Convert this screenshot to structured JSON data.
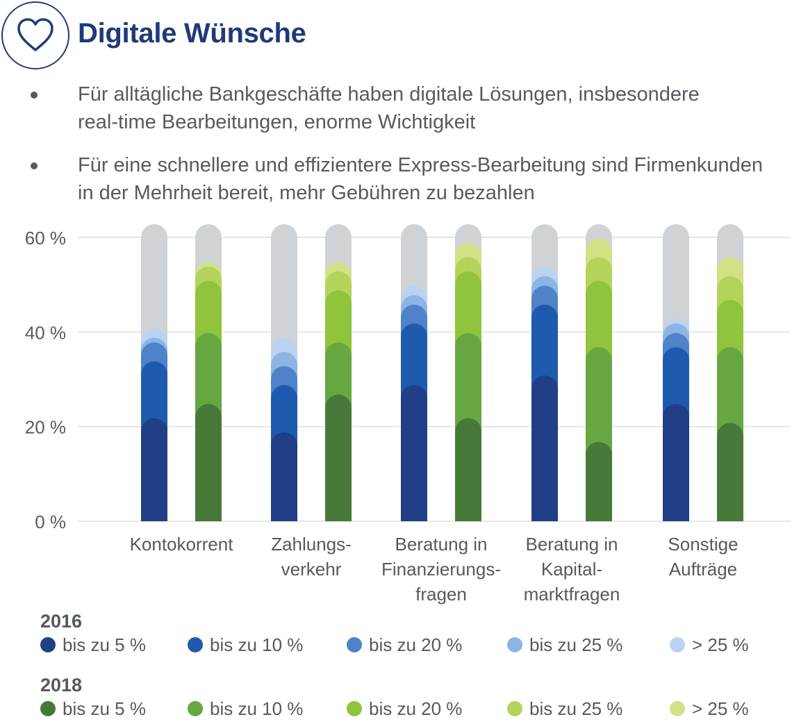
{
  "header": {
    "title": "Digitale Wünsche",
    "icon": "heart-icon"
  },
  "bullets": [
    {
      "line1": "Für alltägliche Bankgeschäfte haben digitale Lösungen, insbesondere",
      "line2": "real-time Bearbeitungen, enorme Wichtigkeit"
    },
    {
      "line1": "Für eine schnellere und effizientere Express-Bearbeitung sind Firmenkunden",
      "line2": "in der Mehrheit bereit, mehr Gebühren zu bezahlen"
    }
  ],
  "chart_data": {
    "type": "bar",
    "stacked": true,
    "ylim": [
      0,
      60
    ],
    "yticks": [
      0,
      20,
      40,
      60
    ],
    "ytick_labels": [
      "0 %",
      "20 %",
      "40 %",
      "60 %"
    ],
    "categories": [
      "Kontokorrent",
      "Zahlungsverkehr",
      "Beratung in Finanzierungsfragen",
      "Beratung in Kapitalmarktfragen",
      "Sonstige Aufträge"
    ],
    "category_labels": [
      [
        "Kontokorrent"
      ],
      [
        "Zahlungs-",
        "verkehr"
      ],
      [
        "Beratung in",
        "Finanzierungs-",
        "fragen"
      ],
      [
        "Beratung in",
        "Kapital-",
        "marktfragen"
      ],
      [
        "Sonstige",
        "Aufträge"
      ]
    ],
    "background_color": "#d0d3d6",
    "groups": [
      {
        "name": "2016",
        "series": [
          {
            "name": "bis zu 5 %",
            "color": "#213f86",
            "values": [
              19,
              16,
              26,
              28,
              22
            ]
          },
          {
            "name": "bis zu 10 %",
            "color": "#1e5aae",
            "values": [
              12,
              10,
              13,
              15,
              12
            ]
          },
          {
            "name": "bis zu 20 %",
            "color": "#4f82c9",
            "values": [
              4,
              4,
              4,
              4,
              3
            ]
          },
          {
            "name": "bis zu 25 %",
            "color": "#8db5e3",
            "values": [
              1,
              3,
              2,
              2,
              2
            ]
          },
          {
            "name": "> 25 %",
            "color": "#bad3f0",
            "values": [
              2,
              3,
              2,
              2,
              1
            ]
          }
        ]
      },
      {
        "name": "2018",
        "series": [
          {
            "name": "bis zu 5 %",
            "color": "#477a38",
            "values": [
              22,
              24,
              19,
              14,
              18
            ]
          },
          {
            "name": "bis zu 10 %",
            "color": "#67a742",
            "values": [
              15,
              11,
              18,
              20,
              16
            ]
          },
          {
            "name": "bis zu 20 %",
            "color": "#8fc43c",
            "values": [
              11,
              11,
              13,
              14,
              10
            ]
          },
          {
            "name": "bis zu 25 %",
            "color": "#b3d35a",
            "values": [
              3,
              4,
              3,
              5,
              5
            ]
          },
          {
            "name": "> 25 %",
            "color": "#d0e186",
            "values": [
              1,
              2,
              3,
              4,
              4
            ]
          }
        ]
      }
    ]
  }
}
